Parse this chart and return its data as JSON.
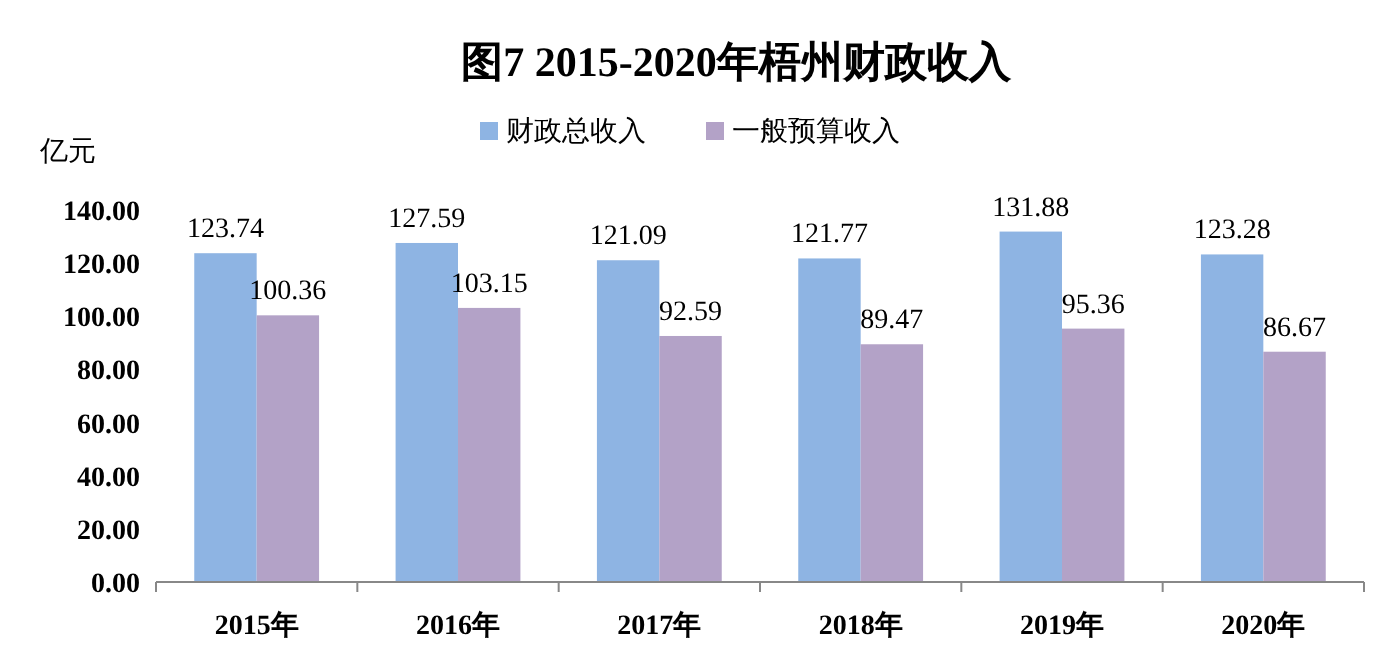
{
  "chart_data": {
    "type": "bar",
    "title": "图7 2015-2020年梧州财政收入",
    "ylabel": "亿元",
    "categories": [
      "2015年",
      "2016年",
      "2017年",
      "2018年",
      "2019年",
      "2020年"
    ],
    "series": [
      {
        "name": "财政总收入",
        "color": "#8eb4e3",
        "values": [
          123.74,
          127.59,
          121.09,
          121.77,
          131.88,
          123.28
        ]
      },
      {
        "name": "一般预算收入",
        "color": "#b3a2c7",
        "values": [
          100.36,
          103.15,
          92.59,
          89.47,
          95.36,
          86.67
        ]
      }
    ],
    "ylim": [
      0,
      140
    ],
    "yticks": [
      {
        "value": 0,
        "label": "0.00"
      },
      {
        "value": 20,
        "label": "20.00"
      },
      {
        "value": 40,
        "label": "40.00"
      },
      {
        "value": 60,
        "label": "60.00"
      },
      {
        "value": 80,
        "label": "80.00"
      },
      {
        "value": 100,
        "label": "100.00"
      },
      {
        "value": 120,
        "label": "120.00"
      },
      {
        "value": 140,
        "label": "140.00"
      }
    ],
    "data_labels": true,
    "legend": "top",
    "grid": false
  }
}
